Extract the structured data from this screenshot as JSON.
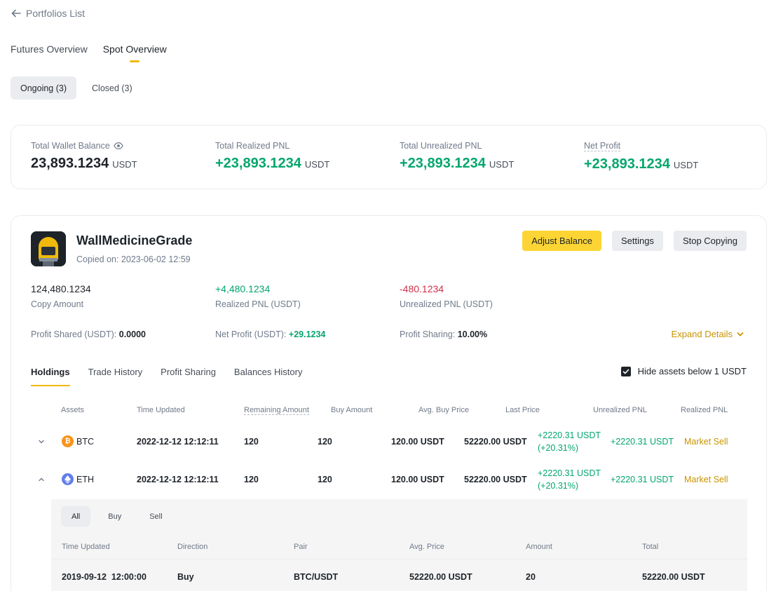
{
  "back": {
    "label": "Portfolios List"
  },
  "main_tabs": [
    {
      "label": "Futures Overview",
      "active": false
    },
    {
      "label": "Spot Overview",
      "active": true
    }
  ],
  "filters": [
    {
      "label": "Ongoing (3)",
      "active": true
    },
    {
      "label": "Closed (3)",
      "active": false
    }
  ],
  "summary": {
    "wallet": {
      "label": "Total Wallet Balance",
      "value": "23,893.1234",
      "unit": "USDT"
    },
    "realized": {
      "label": "Total Realized PNL",
      "value": "+23,893.1234",
      "unit": "USDT"
    },
    "unrealized": {
      "label": "Total Unrealized PNL",
      "value": "+23,893.1234",
      "unit": "USDT"
    },
    "net": {
      "label": "Net Profit",
      "value": "+23,893.1234",
      "unit": "USDT"
    }
  },
  "trader": {
    "name": "WallMedicineGrade",
    "copied_on": "Copied on: 2023-06-02 12:59",
    "buttons": {
      "adjust": "Adjust Balance",
      "settings": "Settings",
      "stop": "Stop Copying"
    },
    "stats": {
      "copy_amount": {
        "value": "124,480.1234",
        "label": "Copy Amount"
      },
      "realized": {
        "value": "+4,480.1234",
        "label": "Realized PNL (USDT)"
      },
      "unrealized": {
        "value": "-480.1234",
        "label": "Unrealized PNL (USDT)"
      }
    },
    "meta": {
      "profit_shared_label": "Profit Shared (USDT):",
      "profit_shared_value": "0.0000",
      "net_profit_label": "Net Profit (USDT):",
      "net_profit_value": "+29.1234",
      "sharing_label": "Profit Sharing:",
      "sharing_value": "10.00%"
    },
    "expand_label": "Expand Details"
  },
  "sub_tabs": [
    "Holdings",
    "Trade History",
    "Profit Sharing",
    "Balances History"
  ],
  "hide_assets": {
    "label": "Hide assets below 1 USDT",
    "checked": true
  },
  "holdings": {
    "headers": {
      "assets": "Assets",
      "time": "Time Updated",
      "remaining": "Remaining Amount",
      "buy": "Buy Amount",
      "avg": "Avg. Buy Price",
      "last": "Last Price",
      "unrealized": "Unrealized PNL",
      "realized": "Realized PNL"
    },
    "rows": [
      {
        "asset": "BTC",
        "time": "2022-12-12 12:12:11",
        "remaining": "120",
        "buy": "120",
        "avg": "120.00 USDT",
        "last": "52220.00 USDT",
        "unrealized_1": "+2220.31 USDT",
        "unrealized_2": "(+20.31%)",
        "realized": "+2220.31 USDT",
        "action": "Market Sell",
        "expanded": false
      },
      {
        "asset": "ETH",
        "time": "2022-12-12 12:12:11",
        "remaining": "120",
        "buy": "120",
        "avg": "120.00 USDT",
        "last": "52220.00 USDT",
        "unrealized_1": "+2220.31 USDT",
        "unrealized_2": "(+20.31%)",
        "realized": "+2220.31 USDT",
        "action": "Market Sell",
        "expanded": true
      }
    ]
  },
  "trades": {
    "filters": [
      "All",
      "Buy",
      "Sell"
    ],
    "headers": {
      "time": "Time Updated",
      "direction": "Direction",
      "pair": "Pair",
      "avg": "Avg. Price",
      "amount": "Amount",
      "total": "Total"
    },
    "rows": [
      {
        "time": "2019-09-12  12:00:00",
        "direction": "Buy",
        "pair": "BTC/USDT",
        "avg": "52220.00 USDT",
        "amount": "20",
        "total": "52220.00 USDT"
      }
    ]
  },
  "colors": {
    "accent": "#fcd535",
    "positive": "#03a66d",
    "negative": "#cf304a",
    "link": "#c99400"
  }
}
